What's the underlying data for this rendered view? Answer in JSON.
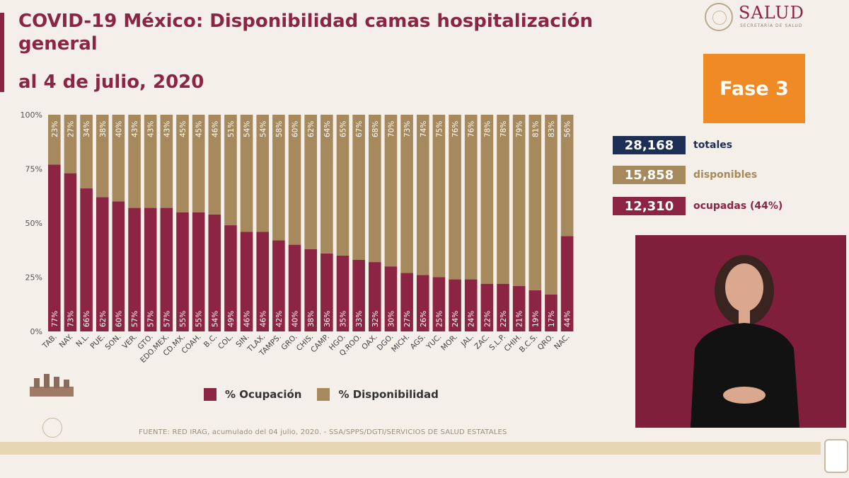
{
  "title": "COVID-19 México: Disponibilidad camas hospitalización general",
  "subtitle": "al 4 de julio, 2020",
  "logo": {
    "text": "SALUD",
    "subtext": "SECRETARÍA DE SALUD",
    "seal_icon": "mexico-seal-icon"
  },
  "phase_label": "Fase 3",
  "stats": [
    {
      "value": "28,168",
      "label": "totales",
      "color": "#1d2f55"
    },
    {
      "value": "15,858",
      "label": "disponibles",
      "color": "#a6895d"
    },
    {
      "value": "12,310",
      "label": "ocupadas (44%)",
      "color": "#8b2543"
    }
  ],
  "legend": [
    {
      "label": "% Ocupación",
      "color": "#8b2543"
    },
    {
      "label": "% Disponibilidad",
      "color": "#a6895d"
    }
  ],
  "source": "FUENTE: RED IRAG, acumulado del 04 julio, 2020.  -  SSA/SPPS/DGTI/SERVICIOS DE SALUD ESTATALES",
  "chart_data": {
    "type": "bar",
    "stacked": true,
    "categories": [
      "TAB.",
      "NAY.",
      "N.L.",
      "PUE.",
      "SON.",
      "VER.",
      "GTO.",
      "EDO.MEX.",
      "CD.MX.",
      "COAH.",
      "B.C.",
      "COL.",
      "SIN.",
      "TLAX.",
      "TAMPS.",
      "GRO.",
      "CHIS.",
      "CAMP.",
      "HGO.",
      "Q.ROO.",
      "OAX.",
      "DGO.",
      "MICH.",
      "AGS.",
      "YUC.",
      "MOR.",
      "JAL.",
      "ZAC.",
      "S.L.P.",
      "CHIH.",
      "B.C.S.",
      "QRO.",
      "NAC."
    ],
    "series": [
      {
        "name": "% Ocupación",
        "color": "#8b2543",
        "values": [
          77,
          73,
          66,
          62,
          60,
          57,
          57,
          57,
          55,
          55,
          54,
          49,
          46,
          46,
          42,
          40,
          38,
          36,
          35,
          33,
          32,
          30,
          27,
          26,
          25,
          24,
          24,
          22,
          22,
          21,
          19,
          17,
          44
        ]
      },
      {
        "name": "% Disponibilidad",
        "color": "#a6895d",
        "values": [
          23,
          27,
          34,
          38,
          40,
          43,
          43,
          43,
          45,
          45,
          46,
          51,
          54,
          54,
          58,
          60,
          62,
          64,
          65,
          67,
          68,
          70,
          73,
          74,
          75,
          76,
          76,
          78,
          78,
          79,
          81,
          83,
          56
        ]
      }
    ],
    "y_ticks": [
      "0%",
      "25%",
      "50%",
      "75%",
      "100%"
    ],
    "ylim": [
      0,
      100
    ],
    "grid": false,
    "legend_position": "bottom"
  }
}
